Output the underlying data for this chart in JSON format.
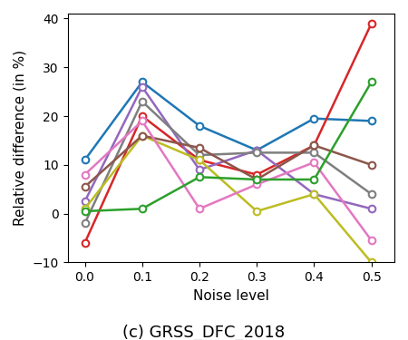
{
  "x": [
    0.0,
    0.1,
    0.2,
    0.3,
    0.4,
    0.5
  ],
  "series": [
    {
      "color": "#1f77b4",
      "values": [
        11,
        27,
        18,
        13,
        19.5,
        19
      ]
    },
    {
      "color": "#d62728",
      "values": [
        -6,
        20,
        11,
        8,
        14,
        39
      ]
    },
    {
      "color": "#9467bd",
      "values": [
        2.5,
        26,
        9,
        13,
        4,
        1
      ]
    },
    {
      "color": "#7f7f7f",
      "values": [
        -2,
        23,
        12,
        12.5,
        12.5,
        4
      ]
    },
    {
      "color": "#bcbd22",
      "values": [
        1,
        16,
        11,
        0.5,
        4,
        -10
      ]
    },
    {
      "color": "#8c564b",
      "values": [
        5.5,
        16,
        13.5,
        7,
        14,
        10
      ]
    },
    {
      "color": "#e377c2",
      "values": [
        8,
        19,
        1,
        6,
        10.5,
        -5.5
      ]
    },
    {
      "color": "#2ca02c",
      "values": [
        0.5,
        1,
        7.5,
        7,
        7,
        27
      ]
    }
  ],
  "xlabel": "Noise level",
  "ylabel": "Relative difference (in %)",
  "title": "(c) GRSS_DFC_2018",
  "xlim": [
    -0.03,
    0.54
  ],
  "ylim": [
    -10,
    41
  ],
  "xticks": [
    0.0,
    0.1,
    0.2,
    0.3,
    0.4,
    0.5
  ],
  "yticks": [
    -10,
    0,
    10,
    20,
    30,
    40
  ],
  "title_fontsize": 13,
  "axis_label_fontsize": 11,
  "tick_fontsize": 10,
  "marker": "o",
  "markersize": 5.5,
  "linewidth": 1.8,
  "figwidth": 4.5,
  "figheight": 3.75,
  "dpi": 100
}
